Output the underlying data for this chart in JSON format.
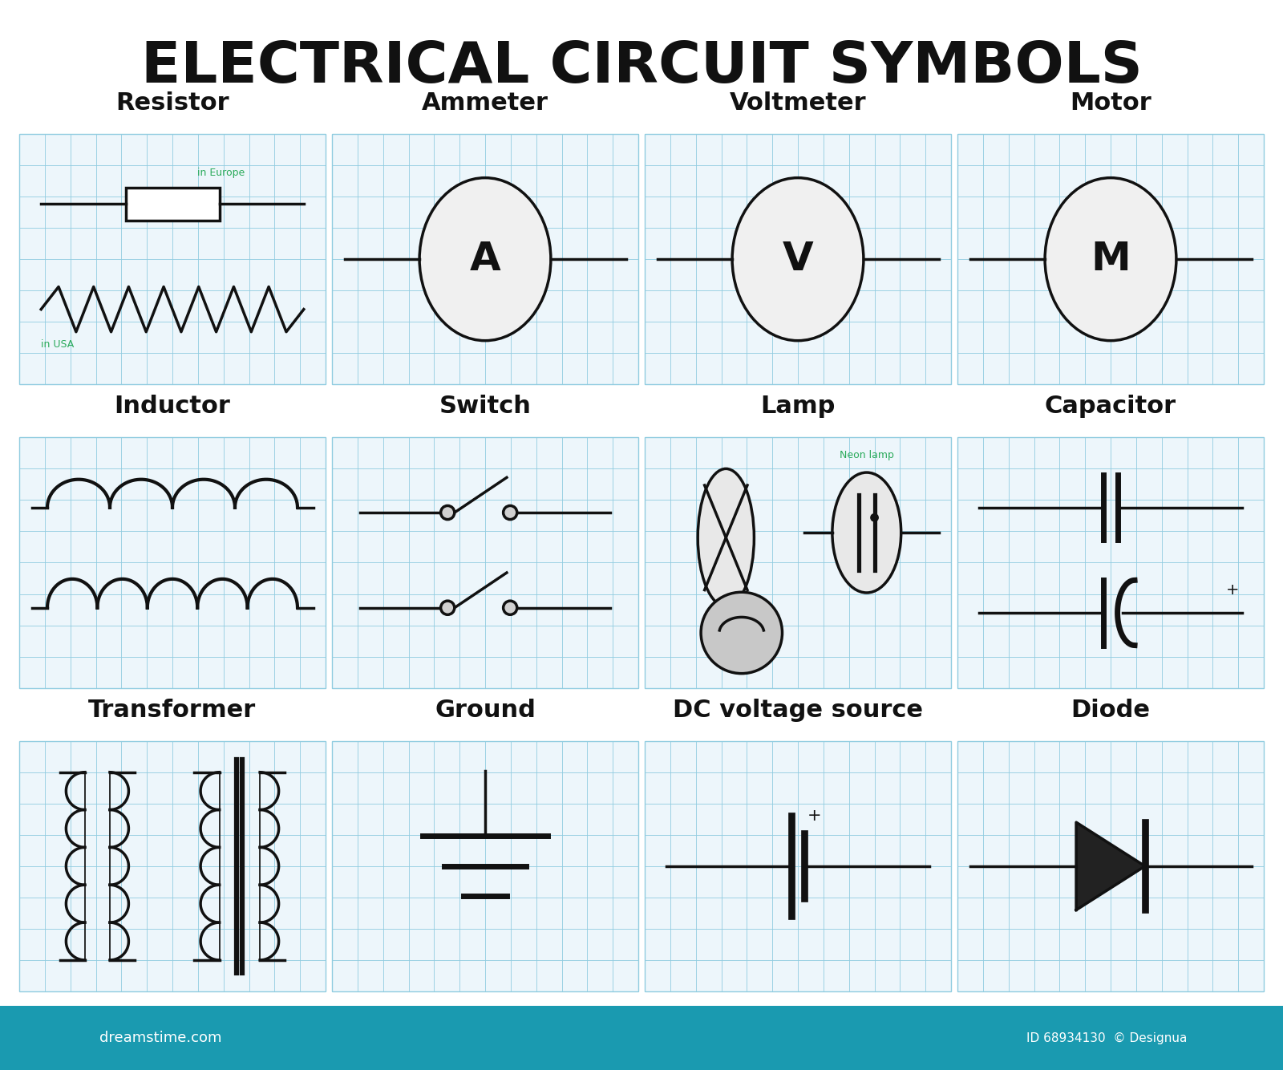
{
  "title": "ELECTRICAL CIRCUIT SYMBOLS",
  "title_fontsize": 52,
  "title_fontweight": "black",
  "bg_color": "#ffffff",
  "grid_color": "#90cce0",
  "cell_label_color": "#111111",
  "label_fontsize": 22,
  "label_fontweight": "bold",
  "symbol_color": "#111111",
  "symbol_lw": 2.5,
  "green_color": "#2aaa5a",
  "footer_color": "#1a9ab0",
  "rows": [
    [
      "Resistor",
      "Ammeter",
      "Voltmeter",
      "Motor"
    ],
    [
      "Inductor",
      "Switch",
      "Lamp",
      "Capacitor"
    ],
    [
      "Transformer",
      "Ground",
      "DC voltage source",
      "Diode"
    ]
  ]
}
